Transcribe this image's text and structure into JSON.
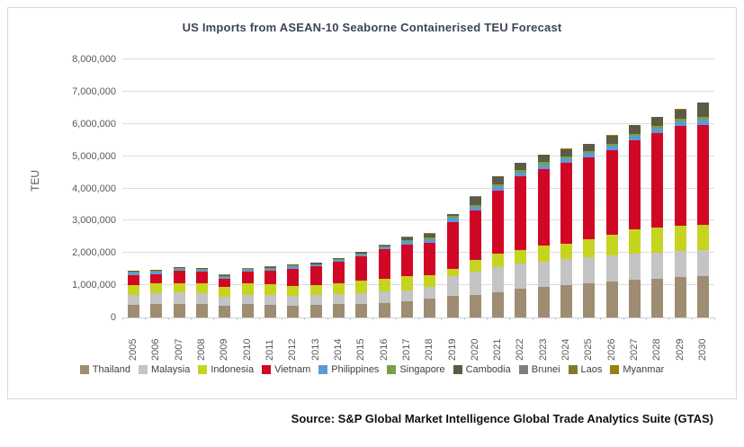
{
  "figure": {
    "title": "US Imports from ASEAN-10 Seaborne Containerised TEU Forecast",
    "source": "Source: S&P Global Market Intelligence Global Trade Analytics Suite (GTAS)"
  },
  "chart_data": {
    "type": "bar",
    "stacked": true,
    "title": "US Imports from ASEAN-10 Seaborne Containerised TEU Forecast",
    "xlabel": "",
    "ylabel": "TEU",
    "ylim": [
      0,
      8000000
    ],
    "ytick_step": 1000000,
    "ytick_labels": [
      "0",
      "1,000,000",
      "2,000,000",
      "3,000,000",
      "4,000,000",
      "5,000,000",
      "6,000,000",
      "7,000,000",
      "8,000,000"
    ],
    "grid": true,
    "legend_position": "bottom",
    "categories": [
      "2005",
      "2006",
      "2007",
      "2008",
      "2009",
      "2010",
      "2011",
      "2012",
      "2013",
      "2014",
      "2015",
      "2016",
      "2017",
      "2018",
      "2019",
      "2020",
      "2021",
      "2022",
      "2023",
      "2024",
      "2025",
      "2026",
      "2027",
      "2028",
      "2029",
      "2030"
    ],
    "series": [
      {
        "name": "Thailand",
        "color": "#9e8d73",
        "values": [
          380000,
          410000,
          430000,
          410000,
          350000,
          410000,
          390000,
          370000,
          390000,
          410000,
          430000,
          440000,
          500000,
          590000,
          660000,
          710000,
          770000,
          880000,
          950000,
          1000000,
          1060000,
          1120000,
          1170000,
          1200000,
          1250000,
          1290000
        ]
      },
      {
        "name": "Malaysia",
        "color": "#c4c4c4",
        "values": [
          310000,
          340000,
          350000,
          340000,
          280000,
          290000,
          300000,
          300000,
          300000,
          310000,
          320000,
          360000,
          350000,
          350000,
          630000,
          710000,
          800000,
          780000,
          780000,
          800000,
          800000,
          810000,
          810000,
          820000,
          820000,
          810000
        ]
      },
      {
        "name": "Indonesia",
        "color": "#c6d420",
        "values": [
          310000,
          310000,
          290000,
          310000,
          310000,
          360000,
          340000,
          310000,
          310000,
          340000,
          400000,
          410000,
          420000,
          370000,
          220000,
          370000,
          410000,
          430000,
          490000,
          500000,
          580000,
          640000,
          740000,
          770000,
          780000,
          780000
        ]
      },
      {
        "name": "Vietnam",
        "color": "#d10825",
        "values": [
          300000,
          290000,
          370000,
          370000,
          270000,
          350000,
          430000,
          540000,
          580000,
          660000,
          760000,
          910000,
          980000,
          1010000,
          1450000,
          1520000,
          1960000,
          2280000,
          2390000,
          2500000,
          2510000,
          2620000,
          2760000,
          2930000,
          3090000,
          3100000
        ]
      },
      {
        "name": "Philippines",
        "color": "#5b9bd5",
        "values": [
          90000,
          80000,
          70000,
          60000,
          60000,
          60000,
          60000,
          60000,
          55000,
          55000,
          55000,
          55000,
          110000,
          110000,
          130000,
          120000,
          120000,
          120000,
          130000,
          130000,
          140000,
          130000,
          150000,
          130000,
          140000,
          150000
        ]
      },
      {
        "name": "Singapore",
        "color": "#77a143",
        "values": [
          30000,
          30000,
          25000,
          25000,
          25000,
          25000,
          25000,
          25000,
          25000,
          25000,
          25000,
          25000,
          45000,
          50000,
          50000,
          60000,
          60000,
          70000,
          70000,
          70000,
          80000,
          70000,
          60000,
          80000,
          80000,
          80000
        ]
      },
      {
        "name": "Cambodia",
        "color": "#5f5a44",
        "values": [
          20000,
          25000,
          20000,
          20000,
          30000,
          25000,
          30000,
          35000,
          35000,
          35000,
          40000,
          45000,
          90000,
          120000,
          70000,
          260000,
          250000,
          230000,
          230000,
          220000,
          210000,
          250000,
          270000,
          280000,
          290000,
          450000
        ]
      },
      {
        "name": "Brunei",
        "color": "#7f7f7f",
        "values": [
          2000,
          2000,
          2000,
          2000,
          2000,
          2000,
          2000,
          2000,
          2000,
          2000,
          2000,
          2000,
          2000,
          2000,
          2000,
          2000,
          2000,
          2000,
          2000,
          2000,
          2000,
          2000,
          2000,
          2000,
          2000,
          2000
        ]
      },
      {
        "name": "Laos",
        "color": "#7e7d2b",
        "values": [
          2000,
          2000,
          2000,
          2000,
          2000,
          2000,
          2000,
          2000,
          2000,
          2000,
          2000,
          2000,
          3000,
          3000,
          3000,
          3000,
          3000,
          3000,
          3000,
          3000,
          3000,
          3000,
          3000,
          3000,
          3000,
          3000
        ]
      },
      {
        "name": "Myanmar",
        "color": "#9c8010",
        "values": [
          3000,
          3000,
          3000,
          3000,
          3000,
          3000,
          3000,
          3000,
          3000,
          3000,
          3000,
          3000,
          5000,
          5000,
          5000,
          5000,
          5000,
          5000,
          5000,
          5000,
          5000,
          5000,
          5000,
          5000,
          5000,
          5000
        ]
      }
    ]
  }
}
